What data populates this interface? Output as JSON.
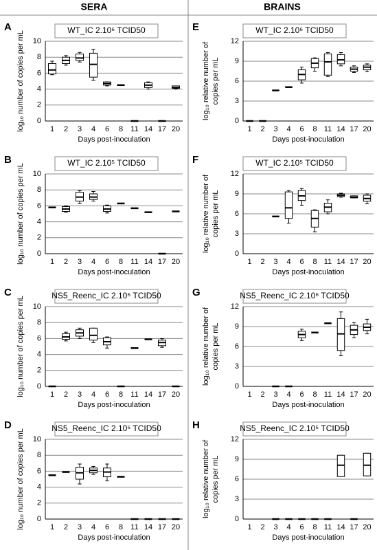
{
  "column_titles": [
    "SERA",
    "BRAINS"
  ],
  "chart_data": [
    {
      "type": "box",
      "label": "A",
      "title": "WT_IC 2.10⁶ TCID50",
      "x_label": "Days post-inoculation",
      "y_label": [
        "log₁₀ number of copies per mL"
      ],
      "categories": [
        "1",
        "2",
        "3",
        "4",
        "6",
        "8",
        "11",
        "14",
        "17",
        "20"
      ],
      "ylim": [
        0,
        10
      ],
      "yticks": [
        0,
        2,
        4,
        6,
        8,
        10
      ],
      "grid": true,
      "boxes": [
        {
          "min": 5.8,
          "q1": 5.9,
          "median": 6.4,
          "q3": 7.2,
          "max": 7.5
        },
        {
          "min": 7.0,
          "q1": 7.2,
          "median": 7.6,
          "q3": 8.0,
          "max": 8.2
        },
        {
          "min": 7.4,
          "q1": 7.6,
          "median": 7.9,
          "q3": 8.4,
          "max": 8.6
        },
        {
          "min": 5.1,
          "q1": 5.5,
          "median": 7.1,
          "q3": 8.5,
          "max": 9.0
        },
        {
          "min": 4.4,
          "q1": 4.5,
          "median": 4.7,
          "q3": 4.9,
          "max": 4.9
        },
        {
          "median": 4.5
        },
        {
          "median": 0
        },
        {
          "min": 4.0,
          "q1": 4.2,
          "median": 4.5,
          "q3": 4.8,
          "max": 4.9
        },
        {
          "median": 0
        },
        {
          "min": 4.0,
          "q1": 4.1,
          "median": 4.2,
          "q3": 4.4,
          "max": 4.4
        }
      ]
    },
    {
      "type": "box",
      "label": "B",
      "title": "WT_IC 2.10⁵ TCID50",
      "x_label": "Days post-inoculation",
      "y_label": [
        "log₁₀ number of copies per mL"
      ],
      "categories": [
        "1",
        "2",
        "3",
        "4",
        "6",
        "8",
        "11",
        "14",
        "17",
        "20"
      ],
      "ylim": [
        0,
        10
      ],
      "yticks": [
        0,
        2,
        4,
        6,
        8,
        10
      ],
      "grid": true,
      "boxes": [
        {
          "median": 5.8
        },
        {
          "min": 5.2,
          "q1": 5.3,
          "median": 5.6,
          "q3": 5.9,
          "max": 6.0
        },
        {
          "min": 6.3,
          "q1": 6.6,
          "median": 7.1,
          "q3": 7.7,
          "max": 7.9
        },
        {
          "min": 6.6,
          "q1": 6.8,
          "median": 7.1,
          "q3": 7.5,
          "max": 7.8
        },
        {
          "min": 5.1,
          "q1": 5.3,
          "median": 5.6,
          "q3": 6.0,
          "max": 6.1
        },
        {
          "median": 6.3
        },
        {
          "median": 5.7
        },
        {
          "median": 5.2
        },
        {
          "median": 0
        },
        {
          "median": 5.3
        }
      ]
    },
    {
      "type": "box",
      "label": "C",
      "title": "NS5_Reenc_IC 2.10⁶ TCID50",
      "x_label": "Days post-inoculation",
      "y_label": [
        "log₁₀ number of copies per mL"
      ],
      "categories": [
        "1",
        "2",
        "3",
        "4",
        "6",
        "8",
        "11",
        "14",
        "17",
        "20"
      ],
      "ylim": [
        0,
        10
      ],
      "yticks": [
        0,
        2,
        4,
        6,
        8,
        10
      ],
      "grid": true,
      "boxes": [
        {
          "median": 0
        },
        {
          "min": 5.7,
          "q1": 5.9,
          "median": 6.2,
          "q3": 6.6,
          "max": 6.8
        },
        {
          "min": 6.0,
          "q1": 6.3,
          "median": 6.7,
          "q3": 7.1,
          "max": 7.3
        },
        {
          "min": 5.5,
          "q1": 5.8,
          "median": 6.4,
          "q3": 7.3,
          "max": 7.3
        },
        {
          "min": 4.8,
          "q1": 5.2,
          "median": 5.6,
          "q3": 6.1,
          "max": 6.2
        },
        {
          "median": 0
        },
        {
          "median": 4.8
        },
        {
          "median": 5.9
        },
        {
          "min": 4.9,
          "q1": 5.1,
          "median": 5.5,
          "q3": 5.8,
          "max": 6.0
        },
        {
          "median": 0
        }
      ]
    },
    {
      "type": "box",
      "label": "D",
      "title": "NS5_Reenc_IC 2.10⁵ TCID50",
      "x_label": "Days post-inoculation",
      "y_label": [
        "log₁₀ number of copies per mL"
      ],
      "categories": [
        "1",
        "2",
        "3",
        "4",
        "6",
        "8",
        "11",
        "14",
        "17",
        "20"
      ],
      "ylim": [
        0,
        10
      ],
      "yticks": [
        0,
        2,
        4,
        6,
        8,
        10
      ],
      "grid": true,
      "boxes": [
        {
          "median": 5.5
        },
        {
          "median": 5.9
        },
        {
          "min": 4.4,
          "q1": 5.0,
          "median": 5.8,
          "q3": 6.5,
          "max": 6.9
        },
        {
          "min": 5.6,
          "q1": 5.8,
          "median": 6.1,
          "q3": 6.4,
          "max": 6.6
        },
        {
          "min": 4.8,
          "q1": 5.3,
          "median": 5.9,
          "q3": 6.4,
          "max": 6.9
        },
        {
          "median": 5.3
        },
        {
          "median": 0
        },
        {
          "median": 0
        },
        {
          "median": 0
        },
        {
          "median": 0
        }
      ]
    },
    {
      "type": "box",
      "label": "E",
      "title": "WT_IC 2.10⁶ TCID50",
      "x_label": "Days post-inoculation",
      "y_label": [
        "log₁₀ relative number of",
        "copies per mL"
      ],
      "categories": [
        "1",
        "2",
        "3",
        "4",
        "6",
        "8",
        "11",
        "14",
        "17",
        "20"
      ],
      "ylim": [
        0,
        12
      ],
      "yticks": [
        0,
        3,
        6,
        9,
        12
      ],
      "grid": true,
      "boxes": [
        {
          "median": 0
        },
        {
          "median": 0
        },
        {
          "median": 4.6
        },
        {
          "median": 5.1
        },
        {
          "min": 5.7,
          "q1": 6.2,
          "median": 7.0,
          "q3": 7.7,
          "max": 8.1
        },
        {
          "min": 7.5,
          "q1": 8.0,
          "median": 8.7,
          "q3": 9.4,
          "max": 9.5
        },
        {
          "min": 6.7,
          "q1": 6.9,
          "median": 8.9,
          "q3": 10.1,
          "max": 10.3
        },
        {
          "min": 8.3,
          "q1": 8.6,
          "median": 9.2,
          "q3": 10.0,
          "max": 10.3
        },
        {
          "min": 7.3,
          "q1": 7.5,
          "median": 7.8,
          "q3": 8.1,
          "max": 8.3
        },
        {
          "min": 7.4,
          "q1": 7.7,
          "median": 8.1,
          "q3": 8.4,
          "max": 8.6
        }
      ]
    },
    {
      "type": "box",
      "label": "F",
      "title": "WT_IC 2.10⁵ TCID50",
      "x_label": "Days post-inoculation",
      "y_label": [
        "log₁₀ relative number of",
        "copies per mL"
      ],
      "categories": [
        "1",
        "2",
        "3",
        "4",
        "6",
        "8",
        "11",
        "14",
        "17",
        "20"
      ],
      "ylim": [
        0,
        12
      ],
      "yticks": [
        0,
        3,
        6,
        9,
        12
      ],
      "grid": true,
      "boxes": [
        null,
        null,
        {
          "median": 5.6
        },
        {
          "min": 4.6,
          "q1": 5.3,
          "median": 6.9,
          "q3": 9.3,
          "max": 9.5
        },
        {
          "min": 7.3,
          "q1": 8.0,
          "median": 8.7,
          "q3": 9.5,
          "max": 9.8
        },
        {
          "min": 3.3,
          "q1": 4.0,
          "median": 5.3,
          "q3": 6.5,
          "max": 6.6
        },
        {
          "min": 6.0,
          "q1": 6.3,
          "median": 7.0,
          "q3": 7.6,
          "max": 8.1
        },
        {
          "min": 8.5,
          "q1": 8.6,
          "median": 8.8,
          "q3": 9.0,
          "max": 9.1
        },
        {
          "min": 8.4,
          "q1": 8.4,
          "median": 8.5,
          "q3": 8.7,
          "max": 8.7
        },
        {
          "min": 7.5,
          "q1": 7.9,
          "median": 8.3,
          "q3": 8.8,
          "max": 9.0
        }
      ]
    },
    {
      "type": "box",
      "label": "G",
      "title": "NS5_Reenc_IC 2.10⁶ TCID50",
      "x_label": "Days post-inoculation",
      "y_label": [
        "log₁₀ relative number of",
        "copies per mL"
      ],
      "categories": [
        "1",
        "2",
        "3",
        "4",
        "6",
        "8",
        "11",
        "14",
        "17",
        "20"
      ],
      "ylim": [
        0,
        12
      ],
      "yticks": [
        0,
        3,
        6,
        9,
        12
      ],
      "grid": true,
      "boxes": [
        null,
        null,
        {
          "median": 0
        },
        {
          "median": 0
        },
        {
          "min": 6.9,
          "q1": 7.3,
          "median": 7.8,
          "q3": 8.3,
          "max": 8.6
        },
        {
          "median": 8.1
        },
        {
          "median": 9.5
        },
        {
          "min": 4.6,
          "q1": 5.4,
          "median": 7.9,
          "q3": 10.2,
          "max": 11.2
        },
        {
          "min": 7.3,
          "q1": 7.8,
          "median": 8.5,
          "q3": 9.2,
          "max": 9.6
        },
        {
          "min": 7.9,
          "q1": 8.4,
          "median": 8.9,
          "q3": 9.4,
          "max": 10.1
        }
      ]
    },
    {
      "type": "box",
      "label": "H",
      "title": "NS5_Reenc_IC 2.10⁵ TCID50",
      "x_label": "Days post-inoculation",
      "y_label": [
        "log₁₀ relative number of",
        "copies per mL"
      ],
      "categories": [
        "1",
        "2",
        "3",
        "4",
        "6",
        "8",
        "11",
        "14",
        "17",
        "20"
      ],
      "ylim": [
        0,
        12
      ],
      "yticks": [
        0,
        3,
        6,
        9,
        12
      ],
      "grid": true,
      "boxes": [
        null,
        null,
        {
          "median": 0
        },
        {
          "median": 0
        },
        {
          "median": 0
        },
        {
          "median": 0
        },
        {
          "median": 0
        },
        {
          "min": 6.4,
          "q1": 6.4,
          "median": 8.1,
          "q3": 9.6,
          "max": 9.6
        },
        {
          "median": 0
        },
        {
          "min": 6.5,
          "q1": 6.5,
          "median": 8.1,
          "q3": 9.9,
          "max": 9.9
        }
      ]
    }
  ]
}
